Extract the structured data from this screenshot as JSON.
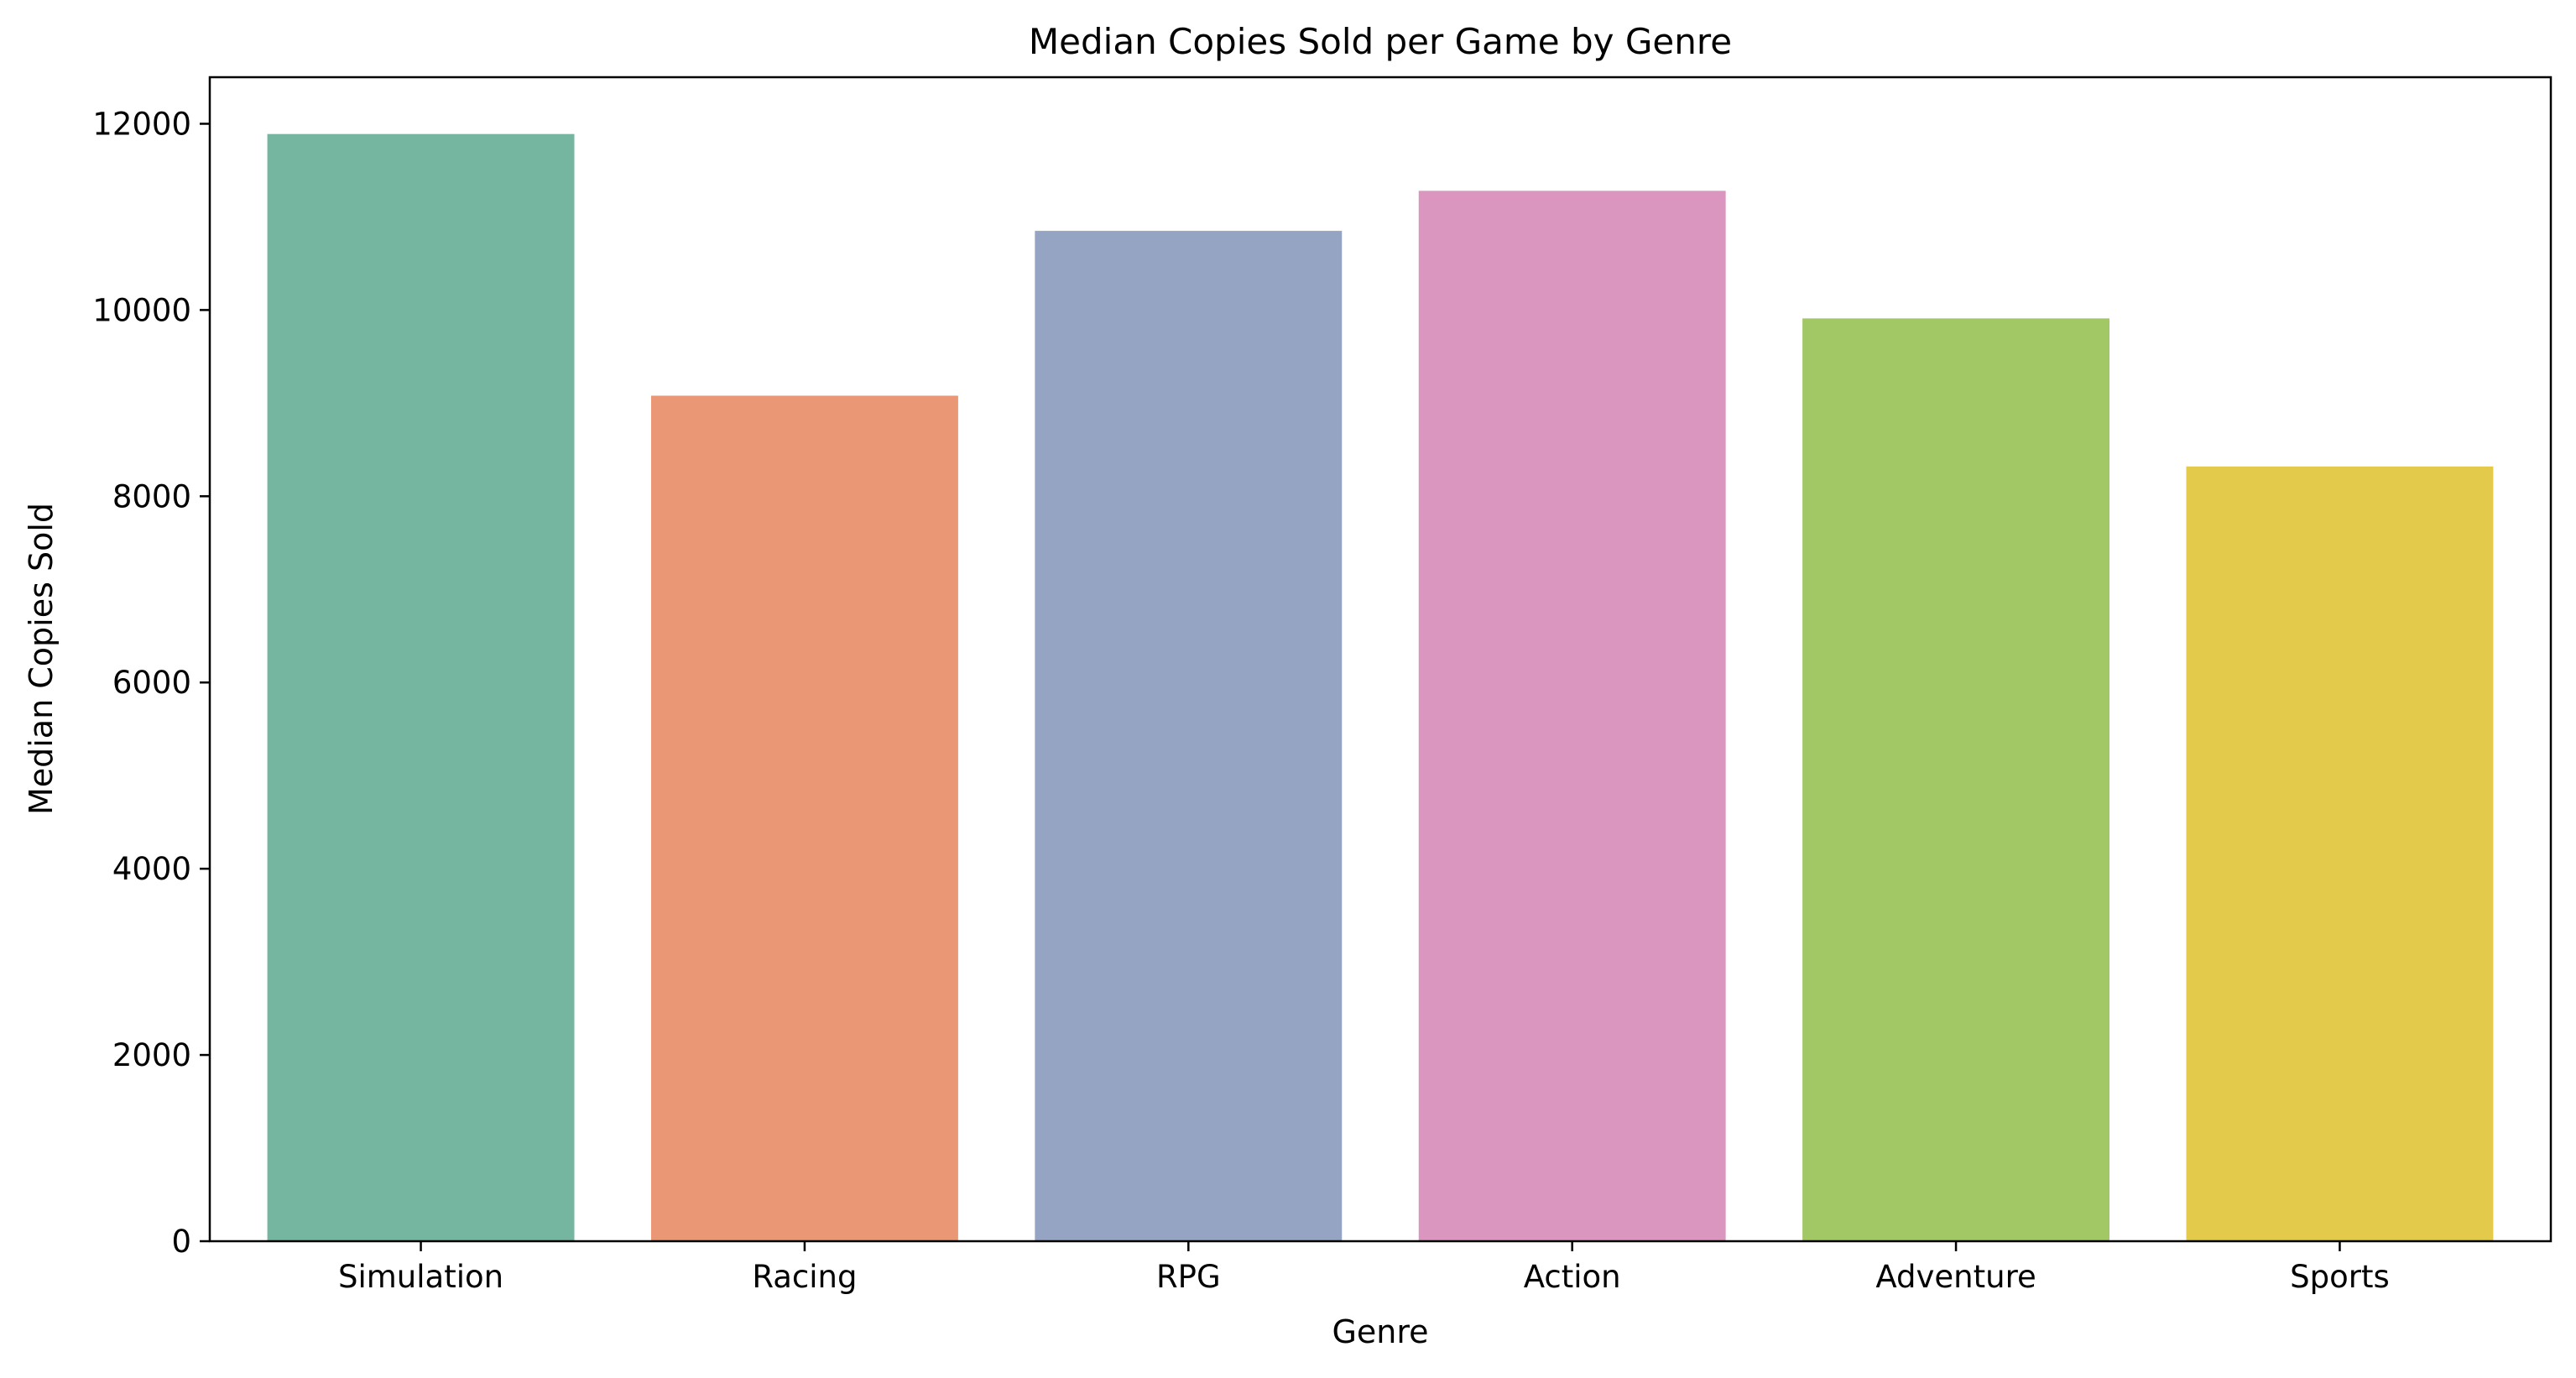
{
  "chart_data": {
    "type": "bar",
    "title": "Median Copies Sold per Game by Genre",
    "xlabel": "Genre",
    "ylabel": "Median Copies Sold",
    "categories": [
      "Simulation",
      "Racing",
      "RPG",
      "Action",
      "Adventure",
      "Sports"
    ],
    "values": [
      11890,
      9080,
      10850,
      11280,
      9910,
      8320
    ],
    "colors": [
      "#74b6a0",
      "#e99775",
      "#95a4c3",
      "#db96c0",
      "#a2c866",
      "#e3ca4b"
    ],
    "ylim": [
      0,
      12500
    ],
    "yticks": [
      0,
      2000,
      4000,
      6000,
      8000,
      10000,
      12000
    ],
    "ytick_labels": [
      "0",
      "2000",
      "4000",
      "6000",
      "8000",
      "10000",
      "12000"
    ],
    "grid": false,
    "legend": "none"
  }
}
